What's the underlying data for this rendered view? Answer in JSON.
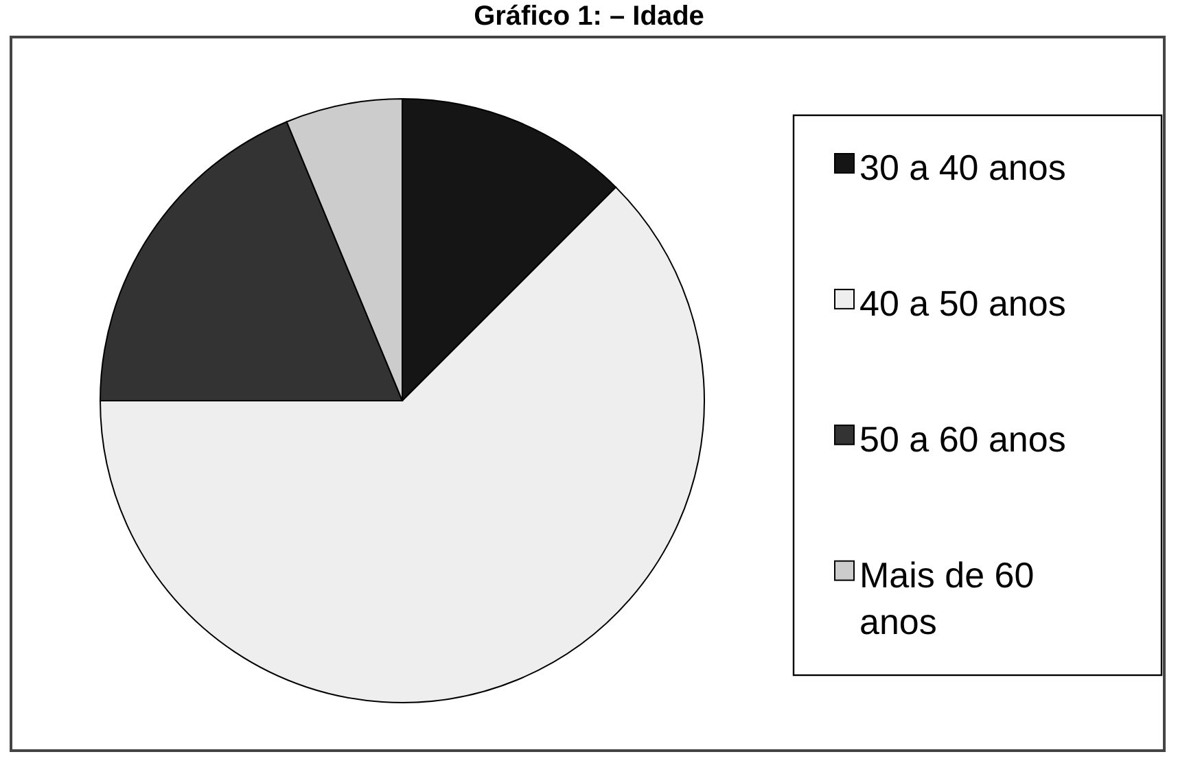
{
  "chart_data": {
    "type": "pie",
    "title": "Gráfico 1: – Idade",
    "categories": [
      "30 a 40 anos",
      "40 a 50 anos",
      "50 a 60 anos",
      "Mais de 60 anos"
    ],
    "values": [
      12.5,
      62.5,
      18.75,
      6.25
    ],
    "colors": [
      "#151515",
      "#eeeeee",
      "#333333",
      "#cccccc"
    ],
    "legend": "right"
  }
}
